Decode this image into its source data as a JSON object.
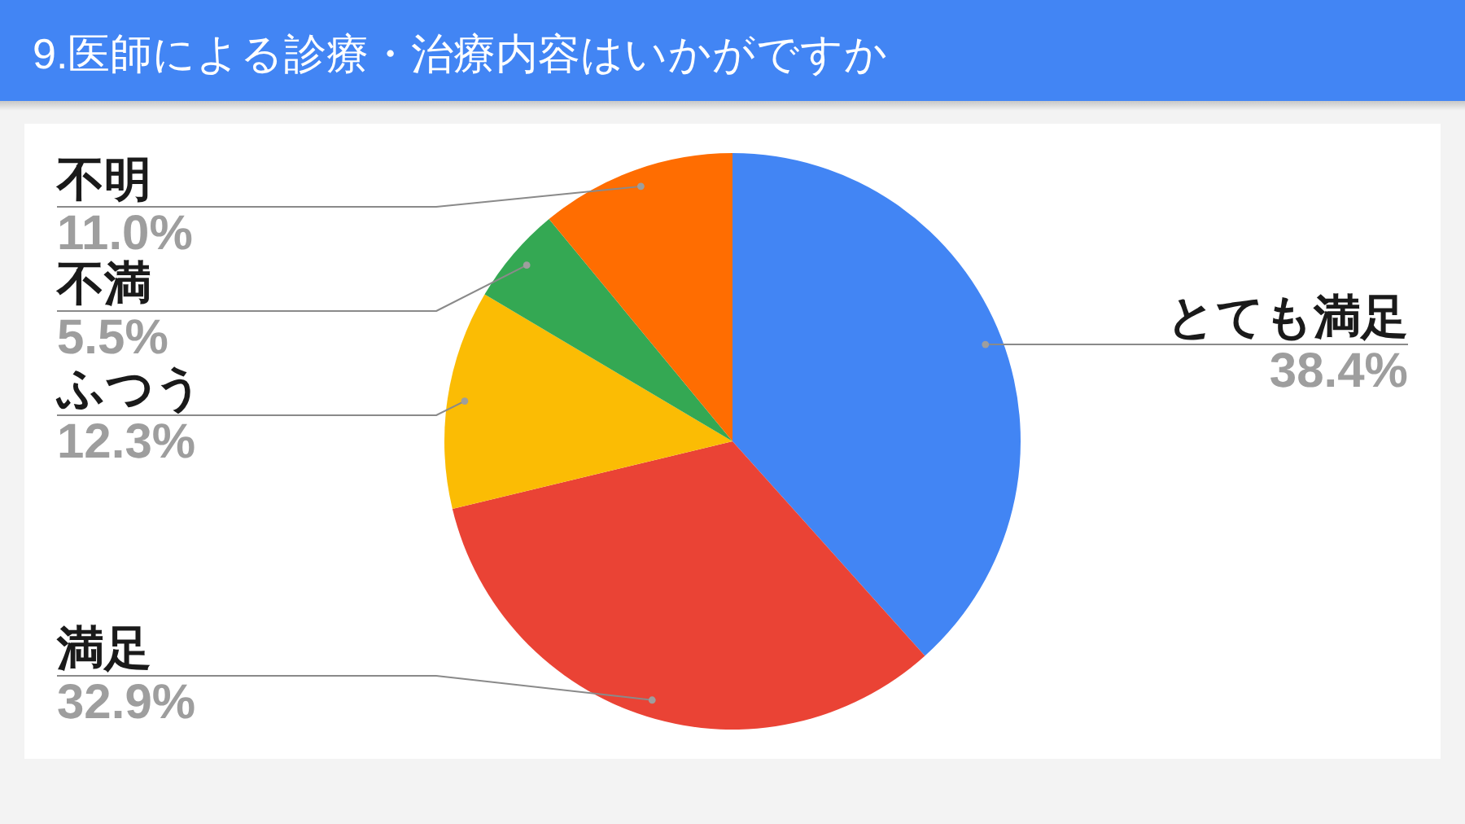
{
  "chart_data": {
    "type": "pie",
    "title": "9.医師による診療・治療内容はいかがですか",
    "categories": [
      "とても満足",
      "満足",
      "ふつう",
      "不満",
      "不明"
    ],
    "values": [
      38.4,
      32.9,
      12.3,
      5.5,
      11.0
    ],
    "colors": [
      "#4285f4",
      "#ea4335",
      "#fbbc04",
      "#34a853",
      "#ff6d01"
    ],
    "value_labels": [
      "38.4%",
      "32.9%",
      "12.3%",
      "5.5%",
      "11.0%"
    ]
  }
}
